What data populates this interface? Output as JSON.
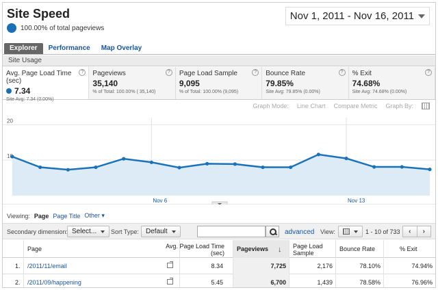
{
  "header": {
    "title": "Site Speed",
    "subtitle": "100.00% of total pageviews",
    "date_range": "Nov 1, 2011 - Nov 16, 2011"
  },
  "tabs": [
    {
      "label": "Explorer",
      "active": true
    },
    {
      "label": "Performance",
      "active": false
    },
    {
      "label": "Map Overlay",
      "active": false
    }
  ],
  "subnav": {
    "label": "Site Usage"
  },
  "metrics": [
    {
      "label": "Avg. Page Load Time (sec)",
      "value": "7.34",
      "sub": "Site Avg: 7.34 (0.00%)",
      "active": true
    },
    {
      "label": "Pageviews",
      "value": "35,140",
      "sub": "% of Total: 100.00% ( 35,140)",
      "active": false
    },
    {
      "label": "Page Load Sample",
      "value": "9,095",
      "sub": "% of Total: 100.00% (9,095)",
      "active": false
    },
    {
      "label": "Bounce Rate",
      "value": "79.85%",
      "sub": "Site Avg: 79.85% (0.00%)",
      "active": false
    },
    {
      "label": "% Exit",
      "value": "74.68%",
      "sub": "Site Avg: 74.68% (0.00%)",
      "active": false
    }
  ],
  "graph_options": {
    "graph_mode_label": "Graph Mode:",
    "graph_mode_value": "Line Chart",
    "compare_metric": "Compare Metric",
    "graph_by": "Graph By:"
  },
  "chart_data": {
    "type": "area",
    "x": [
      "Nov 1",
      "Nov 2",
      "Nov 3",
      "Nov 4",
      "Nov 5",
      "Nov 6",
      "Nov 7",
      "Nov 8",
      "Nov 9",
      "Nov 10",
      "Nov 11",
      "Nov 12",
      "Nov 13",
      "Nov 14",
      "Nov 15",
      "Nov 16"
    ],
    "values": [
      11.0,
      8.0,
      7.3,
      8.0,
      10.4,
      9.4,
      7.9,
      9.0,
      8.9,
      8.0,
      8.0,
      11.6,
      10.5,
      8.1,
      8.1,
      7.4
    ],
    "ylim": [
      0,
      22
    ],
    "yticks": [
      "10",
      "20"
    ],
    "xtick_labels": [
      {
        "index": 5,
        "label": "Nov 6"
      },
      {
        "index": 12,
        "label": "Nov 13"
      }
    ],
    "line_color": "#1a73b8",
    "fill_color": "#dcebf6",
    "grid": true
  },
  "viewing": {
    "label": "Viewing:",
    "selected": "Page",
    "options": [
      "Page Title",
      "Other"
    ]
  },
  "filterbar": {
    "secondary_label": "Secondary dimension:",
    "secondary_value": "Select...",
    "sort_label": "Sort Type:",
    "sort_value": "Default",
    "search_value": "",
    "advanced": "advanced",
    "view_label": "View:",
    "range": "1 - 10 of 733",
    "prev": "‹",
    "next": "›"
  },
  "table": {
    "headers": {
      "page": "Page",
      "load_time": "Avg. Page Load Time (sec)",
      "pageviews": "Pageviews",
      "sample": "Page Load Sample",
      "bounce": "Bounce Rate",
      "exit": "% Exit"
    },
    "rows": [
      {
        "idx": "1.",
        "page": "/2011/11/email",
        "load_time": "8.34",
        "pageviews": "7,725",
        "sample": "2,176",
        "bounce": "78.10%",
        "exit": "74.94%"
      },
      {
        "idx": "2.",
        "page": "/2011/09/happening",
        "load_time": "5.45",
        "pageviews": "6,700",
        "sample": "1,439",
        "bounce": "78.58%",
        "exit": "76.96%"
      }
    ]
  }
}
